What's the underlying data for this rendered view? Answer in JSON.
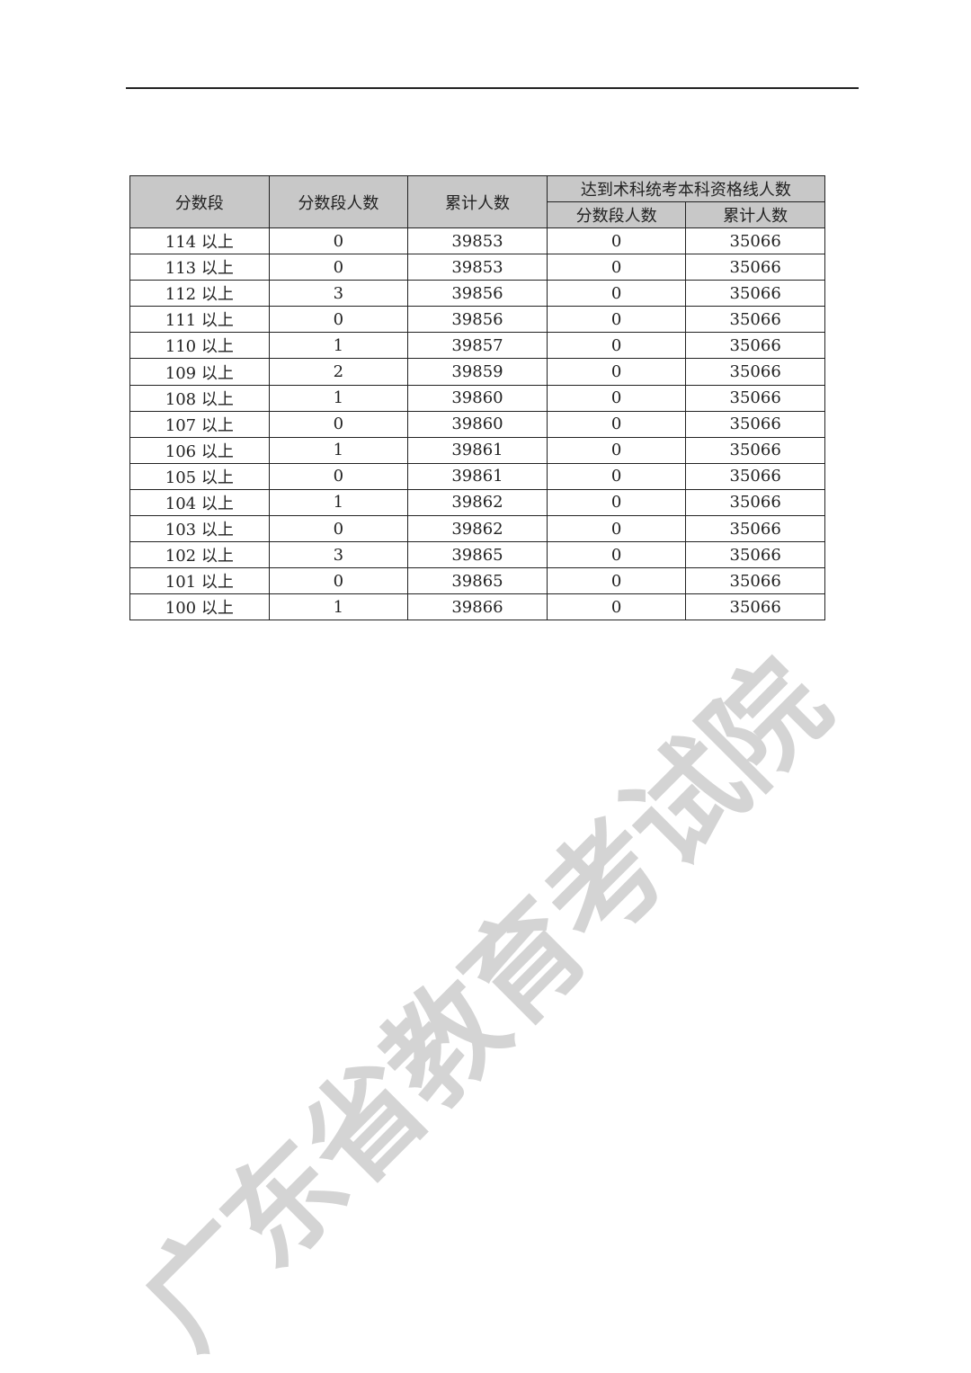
{
  "watermark": "广东省教育考试院",
  "table": {
    "headers": {
      "score_band": "分数段",
      "band_count": "分数段人数",
      "cumulative": "累计人数",
      "group": "达到术科统考本科资格线人数",
      "group_band_count": "分数段人数",
      "group_cumulative": "累计人数"
    },
    "rows": [
      [
        "114 以上",
        "0",
        "39853",
        "0",
        "35066"
      ],
      [
        "113 以上",
        "0",
        "39853",
        "0",
        "35066"
      ],
      [
        "112 以上",
        "3",
        "39856",
        "0",
        "35066"
      ],
      [
        "111 以上",
        "0",
        "39856",
        "0",
        "35066"
      ],
      [
        "110 以上",
        "1",
        "39857",
        "0",
        "35066"
      ],
      [
        "109 以上",
        "2",
        "39859",
        "0",
        "35066"
      ],
      [
        "108 以上",
        "1",
        "39860",
        "0",
        "35066"
      ],
      [
        "107 以上",
        "0",
        "39860",
        "0",
        "35066"
      ],
      [
        "106 以上",
        "1",
        "39861",
        "0",
        "35066"
      ],
      [
        "105 以上",
        "0",
        "39861",
        "0",
        "35066"
      ],
      [
        "104 以上",
        "1",
        "39862",
        "0",
        "35066"
      ],
      [
        "103 以上",
        "0",
        "39862",
        "0",
        "35066"
      ],
      [
        "102 以上",
        "3",
        "39865",
        "0",
        "35066"
      ],
      [
        "101 以上",
        "0",
        "39865",
        "0",
        "35066"
      ],
      [
        "100 以上",
        "1",
        "39866",
        "0",
        "35066"
      ]
    ]
  }
}
